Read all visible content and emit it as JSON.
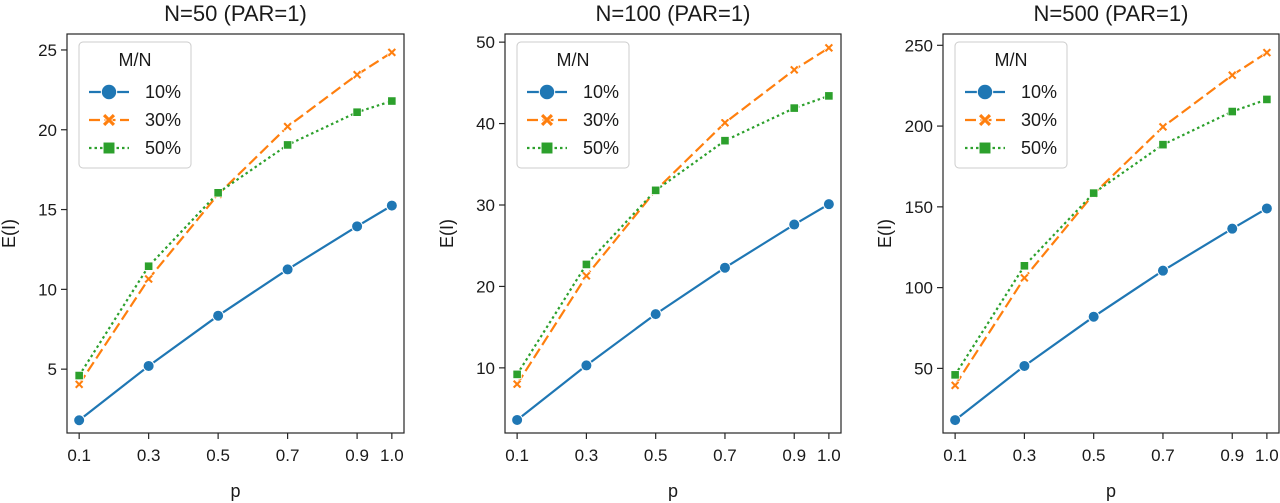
{
  "chart_data": [
    {
      "type": "line",
      "title": "N=50 (PAR=1)",
      "xlabel": "p",
      "ylabel": "E(I)",
      "x": [
        0.1,
        0.3,
        0.5,
        0.7,
        0.9,
        1.0
      ],
      "x_tick_labels": [
        "0.1",
        "0.3",
        "0.5",
        "0.7",
        "0.9",
        "1.0"
      ],
      "xlim": [
        0.065,
        1.035
      ],
      "ylim": [
        1.0,
        26.0
      ],
      "y_ticks": [
        5,
        10,
        15,
        20,
        25
      ],
      "y_tick_labels": [
        "5",
        "10",
        "15",
        "20",
        "25"
      ],
      "legend": {
        "title": "M/N",
        "placement": "top-left"
      },
      "series": [
        {
          "name": "10%",
          "color": "#1f77b4",
          "dash": "solid",
          "marker": "circle",
          "values": [
            1.8,
            5.2,
            8.35,
            11.25,
            13.95,
            15.25
          ]
        },
        {
          "name": "30%",
          "color": "#ff7f0e",
          "dash": "dashed",
          "marker": "x",
          "values": [
            4.05,
            10.65,
            15.95,
            20.2,
            23.45,
            24.85
          ]
        },
        {
          "name": "50%",
          "color": "#2ca02c",
          "dash": "dotted",
          "marker": "square",
          "values": [
            4.6,
            11.45,
            16.05,
            19.05,
            21.1,
            21.8
          ]
        }
      ]
    },
    {
      "type": "line",
      "title": "N=100 (PAR=1)",
      "xlabel": "p",
      "ylabel": "E(I)",
      "x": [
        0.1,
        0.3,
        0.5,
        0.7,
        0.9,
        1.0
      ],
      "x_tick_labels": [
        "0.1",
        "0.3",
        "0.5",
        "0.7",
        "0.9",
        "1.0"
      ],
      "xlim": [
        0.065,
        1.035
      ],
      "ylim": [
        2.0,
        51.0
      ],
      "y_ticks": [
        10,
        20,
        30,
        40,
        50
      ],
      "y_tick_labels": [
        "10",
        "20",
        "30",
        "40",
        "50"
      ],
      "legend": {
        "title": "M/N",
        "placement": "top-left"
      },
      "series": [
        {
          "name": "10%",
          "color": "#1f77b4",
          "dash": "solid",
          "marker": "circle",
          "values": [
            3.6,
            10.3,
            16.6,
            22.3,
            27.6,
            30.1
          ]
        },
        {
          "name": "30%",
          "color": "#ff7f0e",
          "dash": "dashed",
          "marker": "x",
          "values": [
            8.0,
            21.3,
            31.8,
            40.1,
            46.6,
            49.3
          ]
        },
        {
          "name": "50%",
          "color": "#2ca02c",
          "dash": "dotted",
          "marker": "square",
          "values": [
            9.2,
            22.7,
            31.8,
            37.9,
            41.9,
            43.4
          ]
        }
      ]
    },
    {
      "type": "line",
      "title": "N=500 (PAR=1)",
      "xlabel": "p",
      "ylabel": "E(I)",
      "x": [
        0.1,
        0.3,
        0.5,
        0.7,
        0.9,
        1.0
      ],
      "x_tick_labels": [
        "0.1",
        "0.3",
        "0.5",
        "0.7",
        "0.9",
        "1.0"
      ],
      "xlim": [
        0.065,
        1.035
      ],
      "ylim": [
        10.0,
        257.0
      ],
      "y_ticks": [
        50,
        100,
        150,
        200,
        250
      ],
      "y_tick_labels": [
        "50",
        "100",
        "150",
        "200",
        "250"
      ],
      "legend": {
        "title": "M/N",
        "placement": "top-left"
      },
      "series": [
        {
          "name": "10%",
          "color": "#1f77b4",
          "dash": "solid",
          "marker": "circle",
          "values": [
            18.0,
            51.5,
            82.0,
            110.5,
            136.5,
            149.0
          ]
        },
        {
          "name": "30%",
          "color": "#ff7f0e",
          "dash": "dashed",
          "marker": "x",
          "values": [
            39.5,
            106.0,
            158.0,
            199.5,
            231.5,
            245.5
          ]
        },
        {
          "name": "50%",
          "color": "#2ca02c",
          "dash": "dotted",
          "marker": "square",
          "values": [
            46.0,
            113.5,
            158.5,
            188.5,
            209.0,
            216.5
          ]
        }
      ]
    }
  ]
}
